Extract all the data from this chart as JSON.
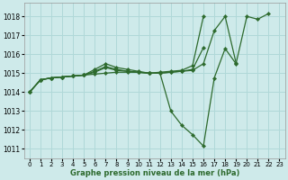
{
  "title": "Graphe pression niveau de la mer (hPa)",
  "background_color": "#ceeaea",
  "grid_color": "#b0d8d8",
  "line_color": "#2d6a2d",
  "marker_color": "#2d6a2d",
  "xlim": [
    -0.5,
    23.5
  ],
  "ylim": [
    1010.5,
    1018.7
  ],
  "yticks": [
    1011,
    1012,
    1013,
    1014,
    1015,
    1016,
    1017,
    1018
  ],
  "xticks": [
    0,
    1,
    2,
    3,
    4,
    5,
    6,
    7,
    8,
    9,
    10,
    11,
    12,
    13,
    14,
    15,
    16,
    17,
    18,
    19,
    20,
    21,
    22,
    23
  ],
  "lines": [
    {
      "x": [
        0,
        1,
        2,
        3,
        4,
        5,
        6,
        7,
        8,
        9,
        10,
        11,
        12,
        13,
        14,
        15,
        16,
        17,
        18,
        19,
        20,
        21,
        22
      ],
      "y": [
        1014.0,
        1014.65,
        1014.75,
        1014.8,
        1014.85,
        1014.9,
        1014.95,
        1015.0,
        1015.05,
        1015.05,
        1015.05,
        1015.0,
        1015.0,
        1013.0,
        1012.25,
        1011.75,
        1011.15,
        1014.75,
        1016.3,
        1015.5,
        1018.0,
        1017.85,
        1018.15
      ]
    },
    {
      "x": [
        0,
        1,
        2,
        3,
        4,
        5,
        6,
        7,
        8,
        9,
        10,
        11,
        12,
        13,
        14,
        15,
        16,
        17,
        18,
        19,
        20,
        21,
        22
      ],
      "y": [
        1014.0,
        1014.65,
        1014.75,
        1014.8,
        1014.85,
        1014.9,
        1015.05,
        1015.3,
        1015.15,
        1015.1,
        1015.05,
        1015.0,
        1015.0,
        1015.05,
        1015.1,
        1015.15,
        1015.5,
        1017.25,
        1018.0,
        1015.55,
        null,
        null,
        null
      ]
    },
    {
      "x": [
        0,
        1,
        2,
        3,
        4,
        5,
        6,
        7,
        8,
        9,
        10,
        11,
        12,
        13,
        14,
        15,
        16,
        17,
        18,
        19,
        20,
        21,
        22
      ],
      "y": [
        1014.0,
        1014.65,
        1014.75,
        1014.8,
        1014.85,
        1014.9,
        1015.1,
        1015.35,
        1015.2,
        1015.1,
        1015.05,
        1015.0,
        1015.0,
        1015.05,
        1015.1,
        1015.2,
        1016.35,
        null,
        null,
        null,
        null,
        null,
        null
      ]
    },
    {
      "x": [
        0,
        1,
        2,
        3,
        4,
        5,
        6,
        7,
        8,
        9,
        10,
        11,
        12,
        13,
        14,
        15,
        16,
        17,
        18,
        19,
        20,
        21,
        22
      ],
      "y": [
        1014.0,
        1014.65,
        1014.75,
        1014.8,
        1014.85,
        1014.9,
        1015.2,
        1015.5,
        1015.3,
        1015.2,
        1015.1,
        1015.0,
        1015.05,
        1015.1,
        1015.15,
        1015.4,
        1018.0,
        null,
        null,
        null,
        null,
        null,
        null
      ]
    }
  ]
}
